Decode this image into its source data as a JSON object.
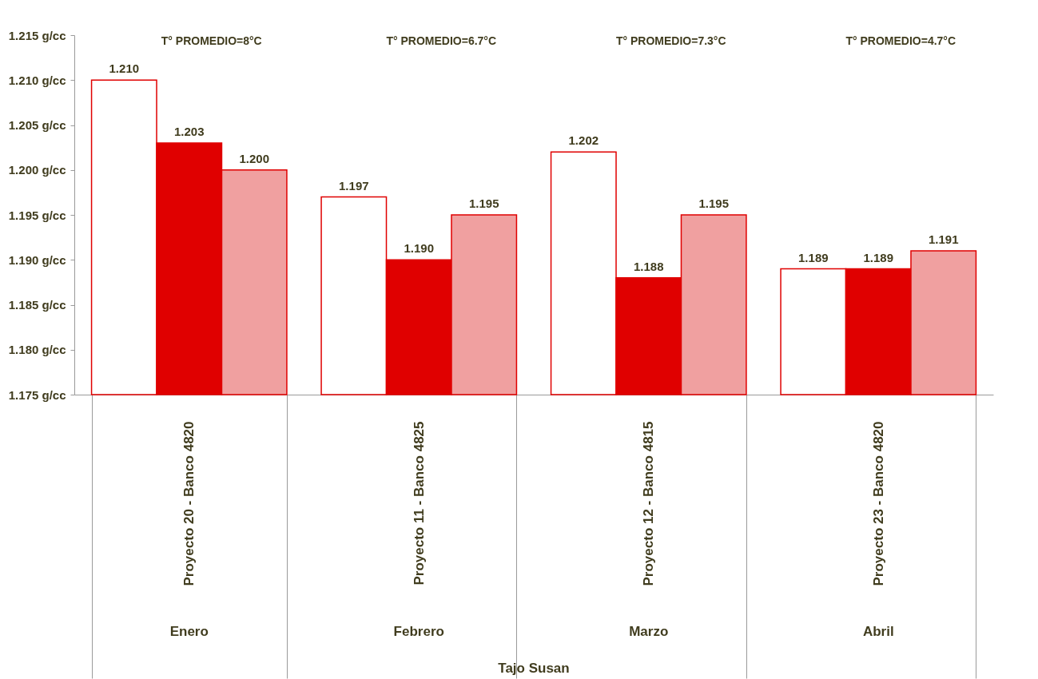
{
  "chart_data": {
    "type": "bar",
    "categories": [
      "Proyecto 20 - Banco 4820",
      "Proyecto 11 - Banco 4825",
      "Proyecto 12 - Banco 4815",
      "Proyecto 23 - Banco 4820"
    ],
    "series": [
      {
        "color": "#ffffff",
        "values": [
          1.21,
          1.197,
          1.202,
          1.189
        ],
        "value_labels": [
          "1.210",
          "1.197",
          "1.202",
          "1.189"
        ]
      },
      {
        "color": "#e00000",
        "values": [
          1.203,
          1.19,
          1.188,
          1.189
        ],
        "value_labels": [
          "1.203",
          "1.190",
          "1.188",
          "1.189"
        ]
      },
      {
        "color": "#f0a0a0",
        "values": [
          1.2,
          1.195,
          1.195,
          1.191
        ],
        "value_labels": [
          "1.200",
          "1.195",
          "1.195",
          "1.191"
        ]
      }
    ],
    "ylim": [
      1.175,
      1.215
    ],
    "yticks": [
      {
        "value": 1.175,
        "label": "1.175 g/cc"
      },
      {
        "value": 1.18,
        "label": "1.180 g/cc"
      },
      {
        "value": 1.185,
        "label": "1.185 g/cc"
      },
      {
        "value": 1.19,
        "label": "1.190 g/cc"
      },
      {
        "value": 1.195,
        "label": "1.195 g/cc"
      },
      {
        "value": 1.2,
        "label": "1.200 g/cc"
      },
      {
        "value": 1.205,
        "label": "1.205 g/cc"
      },
      {
        "value": 1.21,
        "label": "1.210 g/cc"
      },
      {
        "value": 1.215,
        "label": "1.215 g/cc"
      }
    ],
    "grid": false,
    "legend": false,
    "annotations": [
      "T° PROMEDIO=8°C",
      "T° PROMEDIO=6.7°C",
      "T° PROMEDIO=7.3°C",
      "T° PROMEDIO=4.7°C",
      "Enero",
      "Febrero",
      "Marzo",
      "Abril",
      "Tajo Susan"
    ]
  }
}
